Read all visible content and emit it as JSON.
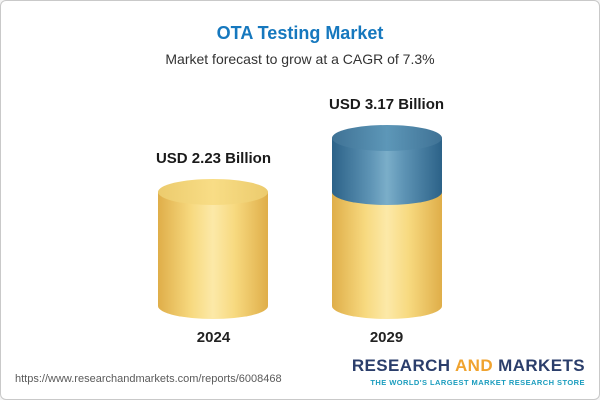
{
  "header": {
    "title": "OTA Testing Market",
    "subtitle": "Market forecast to grow at a CAGR of 7.3%"
  },
  "chart_data": {
    "type": "bar",
    "bar_style": "cylinder",
    "title": "OTA Testing Market",
    "subtitle": "Market forecast to grow at a CAGR of 7.3%",
    "categories": [
      "2024",
      "2029"
    ],
    "values": [
      2.23,
      3.17
    ],
    "value_labels": [
      "USD 2.23 Billion",
      "USD 3.17 Billion"
    ],
    "unit": "USD Billion",
    "cagr_pct": 7.3,
    "legend": "off",
    "colors": {
      "base_segment": "#f3cf6e",
      "growth_segment": "#4d82a6",
      "title": "#1678be"
    }
  },
  "footer": {
    "url": "https://www.researchandmarkets.com/reports/6008468",
    "logo_words": [
      "RESEARCH",
      "AND",
      "MARKETS"
    ],
    "tagline": "THE WORLD'S LARGEST MARKET RESEARCH STORE"
  }
}
